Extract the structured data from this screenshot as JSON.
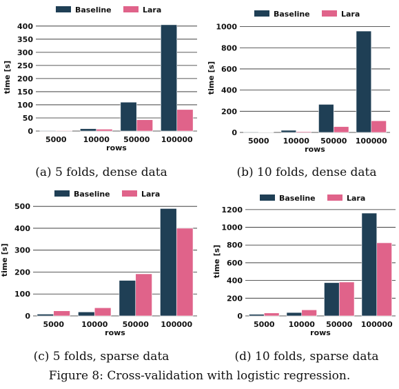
{
  "chart_data": [
    {
      "type": "bar",
      "categories": [
        "5000",
        "10000",
        "50000",
        "100000"
      ],
      "series": [
        {
          "name": "Baseline",
          "values": [
            2,
            9,
            110,
            405
          ]
        },
        {
          "name": "Lara",
          "values": [
            2,
            7,
            43,
            82
          ]
        }
      ],
      "xlabel": "rows",
      "ylabel": "time [s]",
      "ylim": [
        0,
        410
      ],
      "yticks": [
        0,
        50,
        100,
        150,
        200,
        250,
        300,
        350,
        400
      ],
      "caption": "(a) 5 folds, dense data",
      "legend": "top",
      "grid": "y"
    },
    {
      "type": "bar",
      "categories": [
        "5000",
        "10000",
        "50000",
        "100000"
      ],
      "series": [
        {
          "name": "Baseline",
          "values": [
            5,
            20,
            265,
            958
          ]
        },
        {
          "name": "Lara",
          "values": [
            3,
            8,
            55,
            110
          ]
        }
      ],
      "xlabel": "rows",
      "ylabel": "time [s]",
      "ylim": [
        0,
        1030
      ],
      "yticks": [
        0,
        200,
        400,
        600,
        800,
        1000
      ],
      "caption": "(b) 10 folds, dense data",
      "legend": "top",
      "grid": "y"
    },
    {
      "type": "bar",
      "categories": [
        "5000",
        "10000",
        "50000",
        "100000"
      ],
      "series": [
        {
          "name": "Baseline",
          "values": [
            8,
            18,
            162,
            490
          ]
        },
        {
          "name": "Lara",
          "values": [
            23,
            37,
            192,
            400
          ]
        }
      ],
      "xlabel": "rows",
      "ylabel": "time [s]",
      "ylim": [
        0,
        510
      ],
      "yticks": [
        0,
        100,
        200,
        300,
        400,
        500
      ],
      "caption": "(c) 5 folds, sparse data",
      "legend": "top",
      "grid": "y"
    },
    {
      "type": "bar",
      "categories": [
        "5000",
        "10000",
        "50000",
        "100000"
      ],
      "series": [
        {
          "name": "Baseline",
          "values": [
            18,
            38,
            375,
            1160
          ]
        },
        {
          "name": "Lara",
          "values": [
            33,
            68,
            382,
            825
          ]
        }
      ],
      "xlabel": "rows",
      "ylabel": "time [s]",
      "ylim": [
        0,
        1230
      ],
      "yticks": [
        0,
        200,
        400,
        600,
        800,
        1000,
        1200
      ],
      "caption": "(d) 10 folds, sparse data",
      "legend": "top",
      "grid": "y"
    }
  ],
  "figure_caption": "Figure 8: Cross-validation with logistic regression.",
  "colors": {
    "Baseline": "#1f3f55",
    "Lara": "#e0638a"
  }
}
